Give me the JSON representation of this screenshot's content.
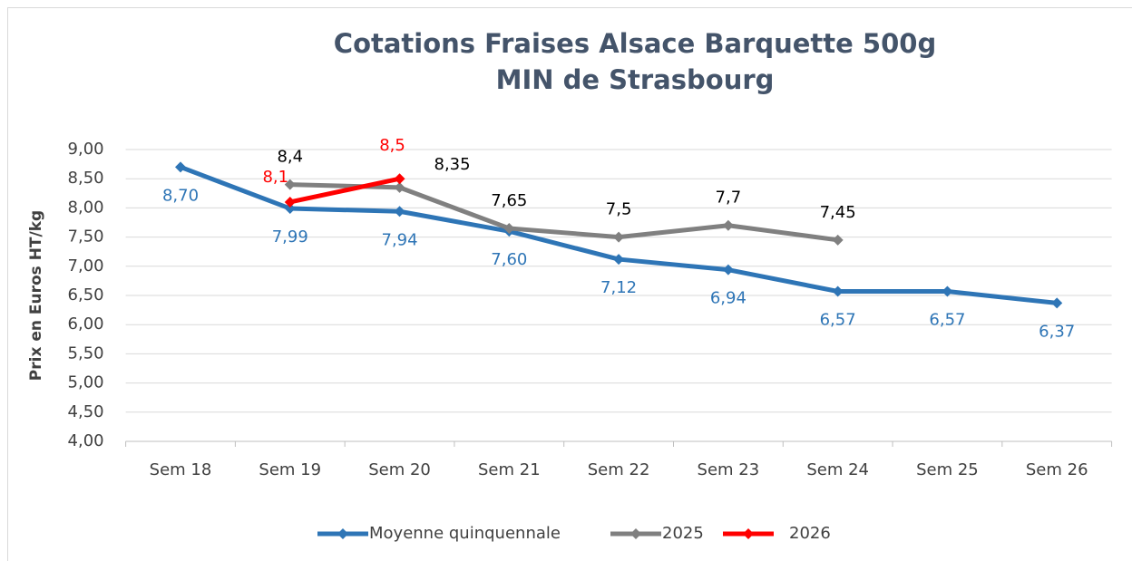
{
  "chart_data": {
    "type": "line",
    "title": [
      "Cotations Fraises Alsace Barquette 500g",
      "MIN de Strasbourg"
    ],
    "y_label": "Prix en Euros HT/kg",
    "categories": [
      "Sem 18",
      "Sem 19",
      "Sem 20",
      "Sem 21",
      "Sem 22",
      "Sem 23",
      "Sem 24",
      "Sem 25",
      "Sem 26"
    ],
    "series": [
      {
        "name": "Moyenne quinquennale",
        "color": "#2e75b6",
        "values": [
          8.7,
          7.99,
          7.94,
          7.6,
          7.12,
          6.94,
          6.57,
          6.57,
          6.37
        ],
        "value_labels": [
          "8,70",
          "7,99",
          "7,94",
          "7,60",
          "7,12",
          "6,94",
          "6,57",
          "6,57",
          "6,37"
        ]
      },
      {
        "name": "2025",
        "color": "#808080",
        "values": [
          null,
          8.4,
          8.35,
          7.65,
          7.5,
          7.7,
          7.45,
          null,
          null
        ],
        "value_labels": [
          null,
          "8,4",
          "8,35",
          "7,65",
          "7,5",
          "7,7",
          "7,45",
          null,
          null
        ]
      },
      {
        "name": "2026",
        "color": "#ff0000",
        "values": [
          null,
          8.1,
          8.5,
          null,
          null,
          null,
          null,
          null,
          null
        ],
        "value_labels": [
          null,
          "8,1",
          "8,5",
          null,
          null,
          null,
          null,
          null,
          null
        ]
      }
    ],
    "ylim": [
      4,
      9
    ],
    "yticks": [
      {
        "value": 4,
        "label": "4,00"
      },
      {
        "value": 4.5,
        "label": "4,50"
      },
      {
        "value": 5,
        "label": "5,00"
      },
      {
        "value": 5.5,
        "label": "5,50"
      },
      {
        "value": 6,
        "label": "6,00"
      },
      {
        "value": 6.5,
        "label": "6,50"
      },
      {
        "value": 7,
        "label": "7,00"
      },
      {
        "value": 7.5,
        "label": "7,50"
      },
      {
        "value": 8,
        "label": "8,00"
      },
      {
        "value": 8.5,
        "label": "8,50"
      },
      {
        "value": 9,
        "label": "9,00"
      }
    ],
    "grid": true,
    "legend": "bottom"
  }
}
